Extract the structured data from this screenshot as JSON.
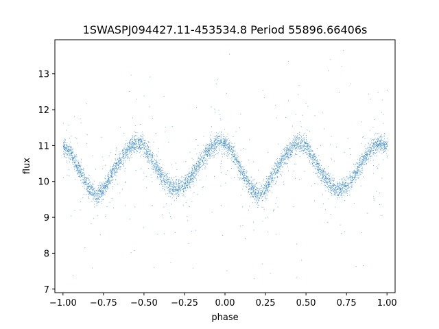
{
  "chart_data": {
    "type": "scatter",
    "title": "1SWASPJ094427.11-453534.8 Period 55896.66406s",
    "xlabel": "phase",
    "ylabel": "flux",
    "xlim": [
      -1.05,
      1.05
    ],
    "ylim": [
      6.9,
      13.95
    ],
    "x_ticks": [
      -1.0,
      -0.75,
      -0.5,
      -0.25,
      0.0,
      0.25,
      0.5,
      0.75,
      1.0
    ],
    "x_tick_labels": [
      "−1.00",
      "−0.75",
      "−0.50",
      "−0.25",
      "0.00",
      "0.25",
      "0.50",
      "0.75",
      "1.00"
    ],
    "y_ticks": [
      7,
      8,
      9,
      10,
      11,
      12,
      13
    ],
    "y_tick_labels": [
      "7",
      "8",
      "9",
      "10",
      "11",
      "12",
      "13"
    ],
    "grid": false,
    "marker_color": "#1f77b4",
    "series": [
      {
        "x": [
          -1.0,
          -0.95,
          -0.9,
          -0.85,
          -0.8,
          -0.75,
          -0.7,
          -0.65,
          -0.6,
          -0.55,
          -0.5,
          -0.45,
          -0.4,
          -0.35,
          -0.3,
          -0.25,
          -0.2,
          -0.15,
          -0.1,
          -0.05,
          0.0,
          0.05,
          0.1,
          0.15,
          0.2,
          0.25,
          0.3,
          0.35,
          0.4,
          0.45,
          0.5,
          0.55,
          0.6,
          0.65,
          0.7,
          0.75,
          0.8,
          0.85,
          0.9,
          0.95,
          1.0
        ],
        "y": [
          11.0,
          10.8,
          10.3,
          9.9,
          9.6,
          9.8,
          10.2,
          10.6,
          10.9,
          11.1,
          11.0,
          10.6,
          10.2,
          9.9,
          9.8,
          9.9,
          10.2,
          10.6,
          10.9,
          11.1,
          11.05,
          10.8,
          10.3,
          9.9,
          9.6,
          9.8,
          10.2,
          10.6,
          10.9,
          11.1,
          11.0,
          10.6,
          10.2,
          9.9,
          9.8,
          9.9,
          10.2,
          10.6,
          10.9,
          11.1,
          11.0
        ],
        "scatter_width": 0.33
      }
    ],
    "outlier_range": [
      7.3,
      13.7
    ]
  }
}
